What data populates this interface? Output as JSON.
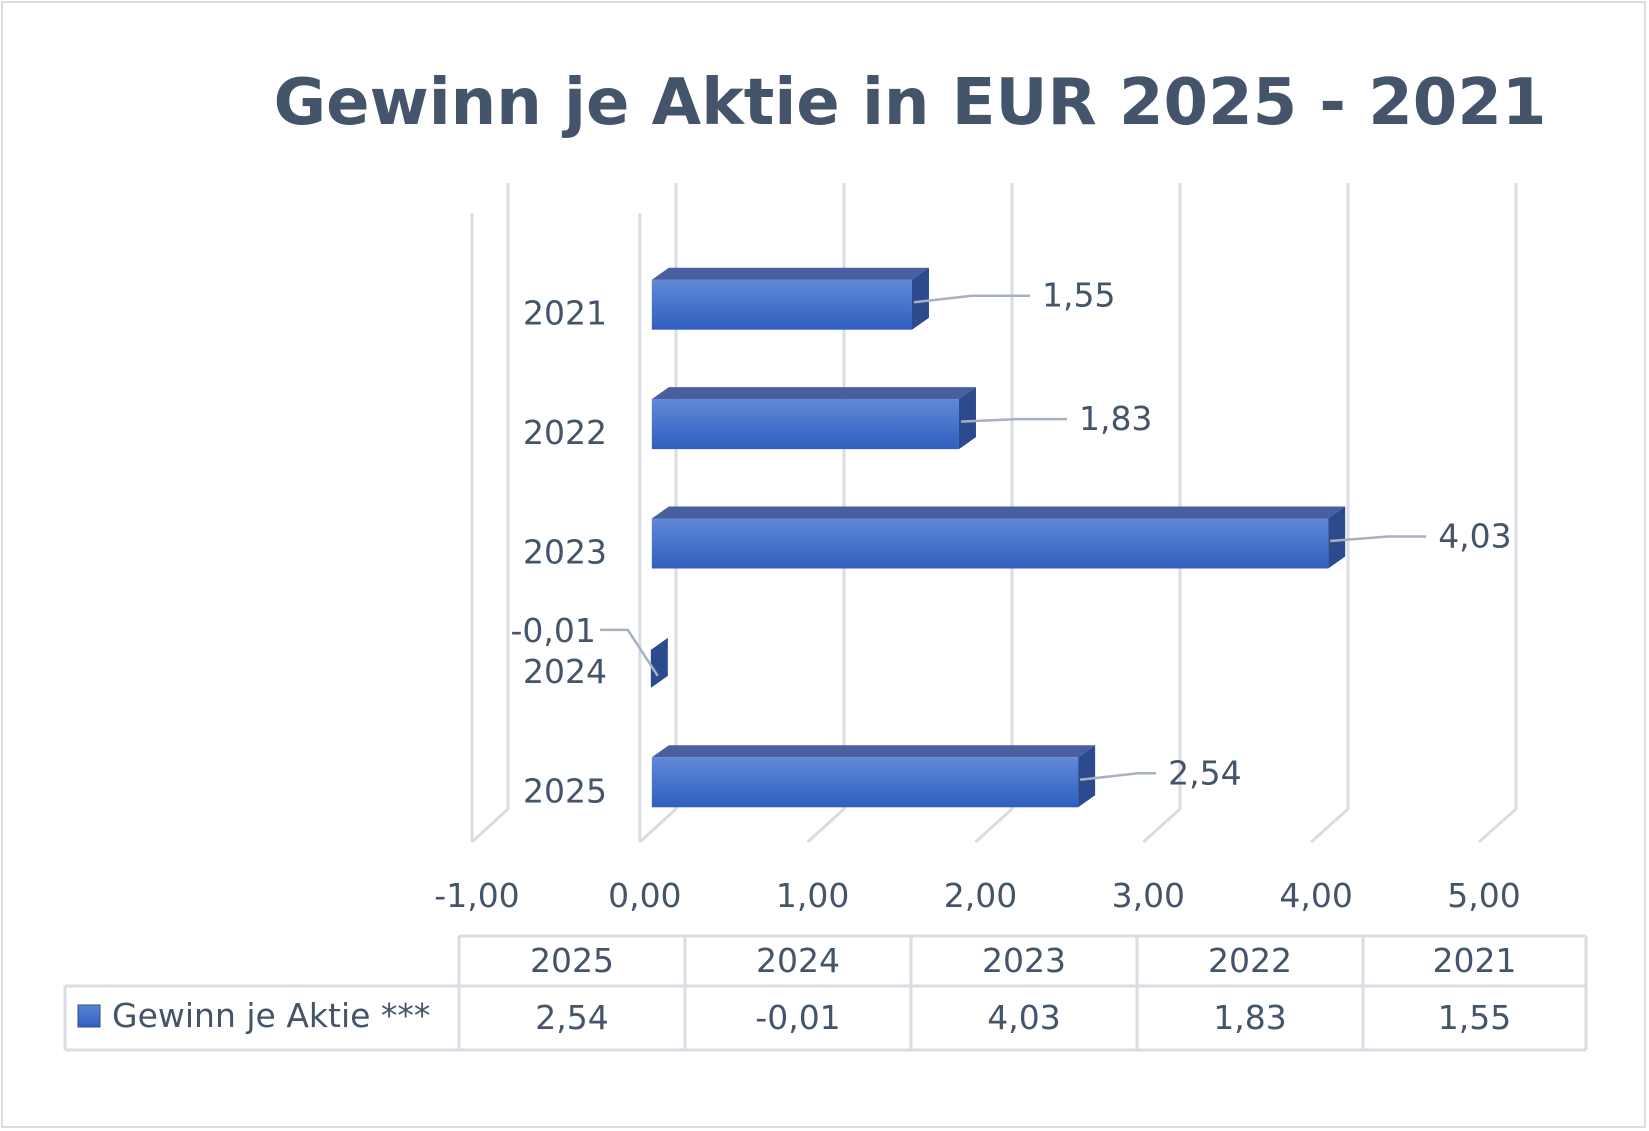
{
  "chart_data": {
    "type": "bar",
    "orientation": "horizontal",
    "style": "3d",
    "title": "Gewinn je Aktie in EUR 2025 - 2021",
    "categories": [
      "2025",
      "2024",
      "2023",
      "2022",
      "2021"
    ],
    "series": [
      {
        "name": "Gewinn je Aktie ***",
        "values": [
          2.54,
          -0.01,
          4.03,
          1.83,
          1.55
        ],
        "color": "#4472c4"
      }
    ],
    "value_labels": [
      "2,54",
      "-0,01",
      "4,03",
      "1,83",
      "1,55"
    ],
    "xlim": [
      -1,
      5
    ],
    "x_ticks": [
      "-1,00",
      "0,00",
      "1,00",
      "2,00",
      "3,00",
      "4,00",
      "5,00"
    ],
    "grid": true,
    "legend": "data-table-below",
    "data_table": {
      "header": [
        "2025",
        "2024",
        "2023",
        "2022",
        "2021"
      ],
      "row_label": "Gewinn je Aktie ***",
      "row_values": [
        "2,54",
        "-0,01",
        "4,03",
        "1,83",
        "1,55"
      ]
    }
  },
  "colors": {
    "bar_front": "#4472c4",
    "bar_top": "#4a5f9f",
    "bar_side": "#2c4a8e",
    "text": "#44546a",
    "grid": "#d9dde3"
  }
}
